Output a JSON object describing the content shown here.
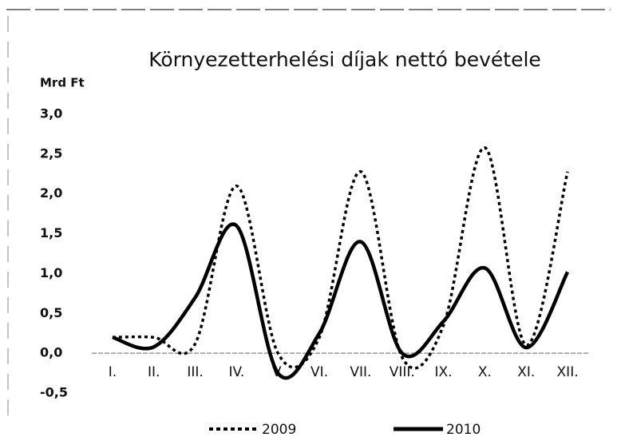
{
  "chart_data": {
    "type": "line",
    "title": "Környezetterhelési díjak nettó bevétele",
    "y_label": "Mrd Ft",
    "categories": [
      "I.",
      "II.",
      "III.",
      "IV.",
      "V.",
      "VI.",
      "VII.",
      "VIII.",
      "IX.",
      "X.",
      "XI.",
      "XII."
    ],
    "series": [
      {
        "name": "2009",
        "color": "#000000",
        "dash": true,
        "values": [
          0.2,
          0.2,
          0.12,
          2.1,
          0.0,
          0.2,
          2.28,
          -0.05,
          0.35,
          2.58,
          0.1,
          2.28
        ]
      },
      {
        "name": "2010",
        "color": "#000000",
        "dash": false,
        "values": [
          0.2,
          0.08,
          0.7,
          1.6,
          -0.25,
          0.25,
          1.4,
          0.0,
          0.4,
          1.07,
          0.07,
          1.02
        ]
      }
    ],
    "ylim": [
      -0.5,
      3.0
    ],
    "yticks": [
      {
        "value": -0.5,
        "label": "-0,5"
      },
      {
        "value": 0,
        "label": "0,0"
      },
      {
        "value": 0.5,
        "label": "0,5"
      },
      {
        "value": 1,
        "label": "1,0"
      },
      {
        "value": 1.5,
        "label": "1,5"
      },
      {
        "value": 2,
        "label": "2,0"
      },
      {
        "value": 2.5,
        "label": "2,5"
      },
      {
        "value": 3,
        "label": "3,0"
      }
    ],
    "grid": false,
    "legend": "bottom"
  }
}
